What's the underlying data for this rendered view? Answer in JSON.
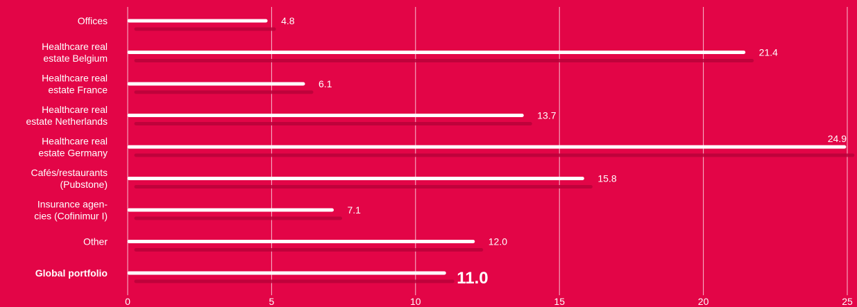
{
  "chart_data": {
    "type": "bar",
    "orientation": "horizontal",
    "categories": [
      [
        "Offices"
      ],
      [
        "Healthcare real",
        "estate Belgium"
      ],
      [
        "Healthcare real",
        "estate France"
      ],
      [
        "Healthcare real",
        "estate Netherlands"
      ],
      [
        "Healthcare real",
        "estate Germany"
      ],
      [
        "Cafés/restaurants",
        "(Pubstone)"
      ],
      [
        "Insurance agen-",
        "cies (Cofinimur I)"
      ],
      [
        "Other"
      ],
      [
        "Global portfolio"
      ]
    ],
    "values": [
      4.8,
      21.4,
      6.1,
      13.7,
      24.9,
      15.8,
      7.1,
      12.0,
      11.0
    ],
    "value_labels": [
      "4.8",
      "21.4",
      "6.1",
      "13.7",
      "24.9",
      "15.8",
      "7.1",
      "12.0",
      "11.0"
    ],
    "highlight_index": 8,
    "xlim": [
      0,
      25
    ],
    "xticks": [
      0,
      5,
      10,
      15,
      20,
      25
    ],
    "xtick_labels": [
      "0",
      "5",
      "10",
      "15",
      "20",
      "25"
    ],
    "grid": true,
    "title": "",
    "xlabel": "",
    "ylabel": "",
    "colors": {
      "background": "#e30547",
      "bar": "#ffffff",
      "shadow": "#b8023a",
      "grid": "#ffffff"
    }
  }
}
